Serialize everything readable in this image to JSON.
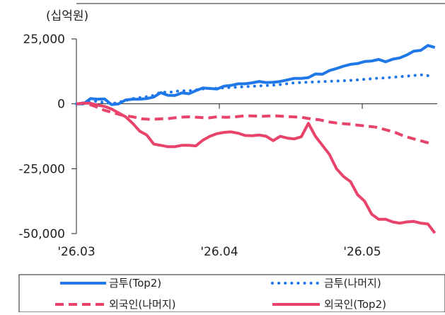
{
  "chart_data": {
    "type": "line",
    "unit_label": "(십억원)",
    "ylim": [
      -50000,
      25000
    ],
    "y_ticks": [
      25000,
      0,
      -25000,
      -50000
    ],
    "y_tick_labels": [
      "25,000",
      "0",
      "-25,000",
      "-50,000"
    ],
    "x_ticks": [
      "'26.03",
      "'26.04",
      "'26.05"
    ],
    "x_tick_days": [
      0,
      30.5,
      61
    ],
    "x_range_days": [
      0,
      77
    ],
    "legend_placement": "bottom",
    "series": [
      {
        "name": "금투(Top2)",
        "color": "#1f77e8",
        "style": "solid",
        "x": [
          0,
          1.5,
          3,
          4.5,
          6,
          7.5,
          9,
          10.5,
          12,
          13.5,
          15,
          16.5,
          18,
          19.5,
          21,
          22.5,
          24,
          25.5,
          27,
          28.5,
          30,
          31.5,
          33,
          34.5,
          36,
          37.5,
          39,
          40.5,
          42,
          43.5,
          45,
          46.5,
          48,
          49.5,
          51,
          52.5,
          54,
          55.5,
          57,
          58.5,
          60,
          61.5,
          63,
          64.5,
          66,
          67.5,
          69,
          70.5,
          72,
          73.5,
          75,
          76.5
        ],
        "y": [
          0,
          0,
          2000,
          1800,
          1900,
          -300,
          0,
          1500,
          1800,
          1800,
          2000,
          2600,
          4300,
          3300,
          3200,
          4200,
          3900,
          5100,
          6100,
          5900,
          5700,
          6800,
          7100,
          7700,
          7700,
          8100,
          8600,
          8200,
          8300,
          8600,
          9200,
          9800,
          9800,
          10100,
          11500,
          11400,
          12800,
          13600,
          14500,
          15200,
          15500,
          16300,
          16500,
          17100,
          16200,
          17200,
          17700,
          18800,
          20300,
          20600,
          22500,
          21700
        ]
      },
      {
        "name": "금투(나머지)",
        "color": "#1f77e8",
        "style": "dotted",
        "x": [
          0,
          2,
          4,
          6,
          8,
          10,
          12,
          14,
          16,
          18,
          20,
          22,
          24,
          26,
          28,
          30,
          32,
          34,
          36,
          38,
          40,
          42,
          44,
          46,
          48,
          50,
          52,
          54,
          56,
          58,
          60,
          62,
          64,
          66,
          68,
          70,
          72,
          74,
          76
        ],
        "y": [
          0,
          500,
          1000,
          500,
          200,
          1000,
          2000,
          2500,
          3000,
          4500,
          4500,
          5000,
          5000,
          5500,
          6000,
          6000,
          6200,
          6400,
          6600,
          6800,
          7000,
          7200,
          7500,
          8000,
          8200,
          8400,
          8500,
          8700,
          8800,
          9000,
          9200,
          9500,
          9800,
          10000,
          10300,
          10600,
          10900,
          11200,
          10500
        ]
      },
      {
        "name": "외국인(나머지)",
        "color": "#e8436b",
        "style": "dashed",
        "x": [
          0,
          2,
          4,
          6,
          8,
          10,
          12,
          14,
          16,
          18,
          20,
          22,
          24,
          26,
          28,
          30,
          32,
          34,
          36,
          38,
          40,
          42,
          44,
          46,
          48,
          50,
          52,
          54,
          56,
          58,
          60,
          62,
          64,
          66,
          68,
          70,
          72,
          74,
          76
        ],
        "y": [
          0,
          200,
          -1000,
          -2500,
          -3500,
          -4500,
          -5000,
          -5800,
          -6000,
          -5800,
          -5600,
          -5200,
          -5000,
          -5200,
          -5500,
          -5000,
          -5200,
          -5000,
          -4600,
          -4700,
          -4800,
          -4600,
          -4800,
          -5000,
          -5200,
          -5800,
          -6200,
          -7000,
          -7500,
          -7800,
          -8200,
          -8600,
          -9000,
          -10000,
          -11000,
          -12500,
          -13500,
          -14500,
          -15500
        ]
      },
      {
        "name": "외국인(Top2)",
        "color": "#e8436b",
        "style": "solid",
        "x": [
          0,
          1.5,
          3,
          4.5,
          6,
          7.5,
          9,
          10.5,
          12,
          13.5,
          15,
          16.5,
          18,
          19.5,
          21,
          22.5,
          24,
          25.5,
          27,
          28.5,
          30,
          31.5,
          33,
          34.5,
          36,
          37.5,
          39,
          40.5,
          42,
          43.5,
          45,
          46.5,
          48,
          49.5,
          51,
          52.5,
          54,
          55.5,
          57,
          58.5,
          60,
          61.5,
          63,
          64.5,
          66,
          67.5,
          69,
          70.5,
          72,
          73.5,
          75,
          76.5
        ],
        "y": [
          0,
          300,
          200,
          -500,
          -1000,
          -2000,
          -3500,
          -5000,
          -7500,
          -10500,
          -12000,
          -15500,
          -16000,
          -16500,
          -16500,
          -16000,
          -16000,
          -16200,
          -14000,
          -12500,
          -11500,
          -11000,
          -10800,
          -11300,
          -12200,
          -12300,
          -12000,
          -12500,
          -14200,
          -12500,
          -13200,
          -13500,
          -12700,
          -7500,
          -12500,
          -16000,
          -19500,
          -25000,
          -28000,
          -30000,
          -35000,
          -37500,
          -42500,
          -44500,
          -44500,
          -45500,
          -46000,
          -45500,
          -45300,
          -46000,
          -46300,
          -49800
        ]
      }
    ]
  }
}
